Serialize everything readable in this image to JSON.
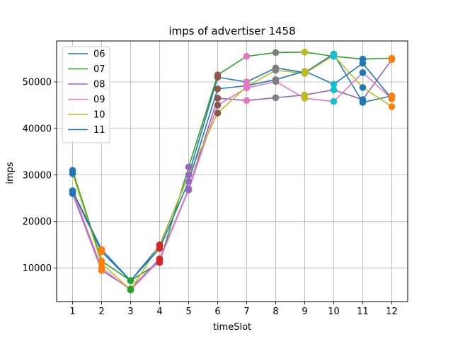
{
  "chart_data": {
    "type": "line",
    "title": "imps of advertiser 1458",
    "xlabel": "timeSlot",
    "ylabel": "imps",
    "x": [
      1,
      2,
      3,
      4,
      5,
      6,
      7,
      8,
      9,
      10,
      11,
      12
    ],
    "xlim": [
      0.45,
      12.55
    ],
    "ylim": [
      2800,
      58800
    ],
    "yticks": [
      10000,
      20000,
      30000,
      40000,
      50000
    ],
    "grid": true,
    "legend_position": "top-left",
    "marker_colors": [
      "#1f77b4",
      "#ff7f0e",
      "#2ca02c",
      "#d62728",
      "#9467bd",
      "#8c564b",
      "#e377c2",
      "#7f7f7f",
      "#bcbd22",
      "#17becf"
    ],
    "series": [
      {
        "name": "06",
        "color": "#1f77b4",
        "values": [
          26500,
          13500,
          7300,
          14800,
          30000,
          51000,
          50000,
          53000,
          52000,
          56000,
          45600,
          47000
        ]
      },
      {
        "name": "07",
        "color": "#2ca02c",
        "values": [
          31000,
          11500,
          7300,
          11200,
          31700,
          51500,
          55500,
          56300,
          56400,
          55500,
          54900,
          55100
        ]
      },
      {
        "name": "08",
        "color": "#9467bd",
        "values": [
          26000,
          9500,
          5500,
          12000,
          27000,
          46500,
          46000,
          46600,
          47200,
          48300,
          46200,
          54800
        ]
      },
      {
        "name": "09",
        "color": "#e377c2",
        "values": [
          26600,
          10000,
          5300,
          11700,
          26800,
          45000,
          48700,
          50100,
          46500,
          45800,
          52000,
          46400
        ]
      },
      {
        "name": "10",
        "color": "#bcbd22",
        "values": [
          30300,
          11000,
          5300,
          15000,
          30000,
          43300,
          49000,
          52500,
          51800,
          55700,
          48800,
          44700
        ]
      },
      {
        "name": "11",
        "color": "#1f77b4",
        "values": [
          26600,
          14000,
          7300,
          14200,
          28600,
          48500,
          49200,
          50500,
          52300,
          49500,
          54000,
          46400
        ]
      }
    ]
  }
}
